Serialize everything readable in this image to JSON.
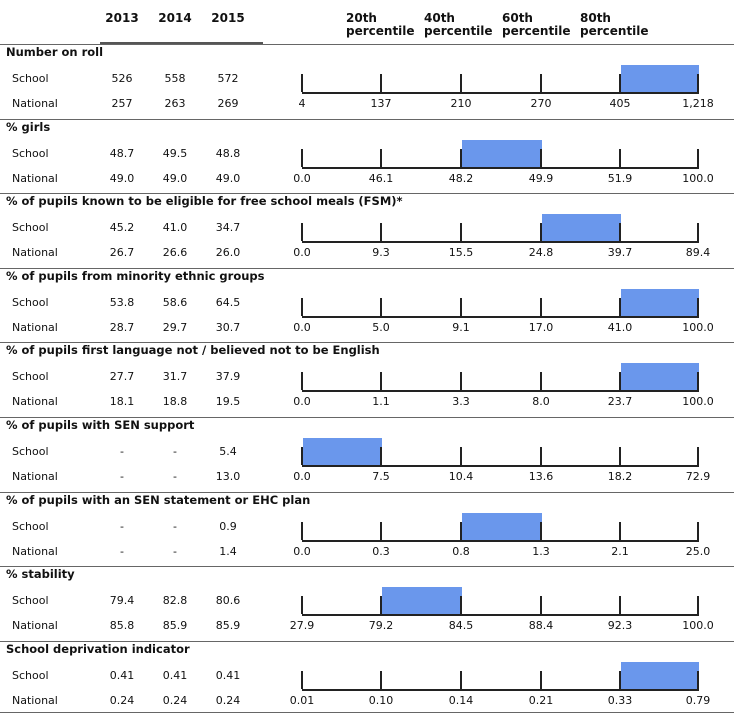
{
  "years": [
    "2013",
    "2014",
    "2015"
  ],
  "percentiles": [
    "20th\npercentile",
    "40th\npercentile",
    "60th\npercentile",
    "80th\npercentile"
  ],
  "row_labels": {
    "school": "School",
    "national": "National"
  },
  "highlight_color": "#6a97ec",
  "sections": [
    {
      "title": "Number on roll",
      "school": [
        "526",
        "558",
        "572"
      ],
      "national": [
        "257",
        "263",
        "269"
      ],
      "scale": [
        "4",
        "137",
        "210",
        "270",
        "405",
        "1,218"
      ],
      "band": 4
    },
    {
      "title": "% girls",
      "school": [
        "48.7",
        "49.5",
        "48.8"
      ],
      "national": [
        "49.0",
        "49.0",
        "49.0"
      ],
      "scale": [
        "0.0",
        "46.1",
        "48.2",
        "49.9",
        "51.9",
        "100.0"
      ],
      "band": 2
    },
    {
      "title": "% of pupils known to be eligible for free school meals (FSM)*",
      "school": [
        "45.2",
        "41.0",
        "34.7"
      ],
      "national": [
        "26.7",
        "26.6",
        "26.0"
      ],
      "scale": [
        "0.0",
        "9.3",
        "15.5",
        "24.8",
        "39.7",
        "89.4"
      ],
      "band": 3
    },
    {
      "title": "% of pupils from minority ethnic groups",
      "school": [
        "53.8",
        "58.6",
        "64.5"
      ],
      "national": [
        "28.7",
        "29.7",
        "30.7"
      ],
      "scale": [
        "0.0",
        "5.0",
        "9.1",
        "17.0",
        "41.0",
        "100.0"
      ],
      "band": 4
    },
    {
      "title": "% of pupils first language not / believed not to be English",
      "school": [
        "27.7",
        "31.7",
        "37.9"
      ],
      "national": [
        "18.1",
        "18.8",
        "19.5"
      ],
      "scale": [
        "0.0",
        "1.1",
        "3.3",
        "8.0",
        "23.7",
        "100.0"
      ],
      "band": 4
    },
    {
      "title": "% of pupils with SEN support",
      "school": [
        "-",
        "-",
        "5.4"
      ],
      "national": [
        "-",
        "-",
        "13.0"
      ],
      "scale": [
        "0.0",
        "7.5",
        "10.4",
        "13.6",
        "18.2",
        "72.9"
      ],
      "band": 0
    },
    {
      "title": "% of pupils with an SEN statement or EHC plan",
      "school": [
        "-",
        "-",
        "0.9"
      ],
      "national": [
        "-",
        "-",
        "1.4"
      ],
      "scale": [
        "0.0",
        "0.3",
        "0.8",
        "1.3",
        "2.1",
        "25.0"
      ],
      "band": 2
    },
    {
      "title": "% stability",
      "school": [
        "79.4",
        "82.8",
        "80.6"
      ],
      "national": [
        "85.8",
        "85.9",
        "85.9"
      ],
      "scale": [
        "27.9",
        "79.2",
        "84.5",
        "88.4",
        "92.3",
        "100.0"
      ],
      "band": 1
    },
    {
      "title": "School deprivation indicator",
      "school": [
        "0.41",
        "0.41",
        "0.41"
      ],
      "national": [
        "0.24",
        "0.24",
        "0.24"
      ],
      "scale": [
        "0.01",
        "0.10",
        "0.14",
        "0.21",
        "0.33",
        "0.79"
      ],
      "band": 4
    }
  ]
}
